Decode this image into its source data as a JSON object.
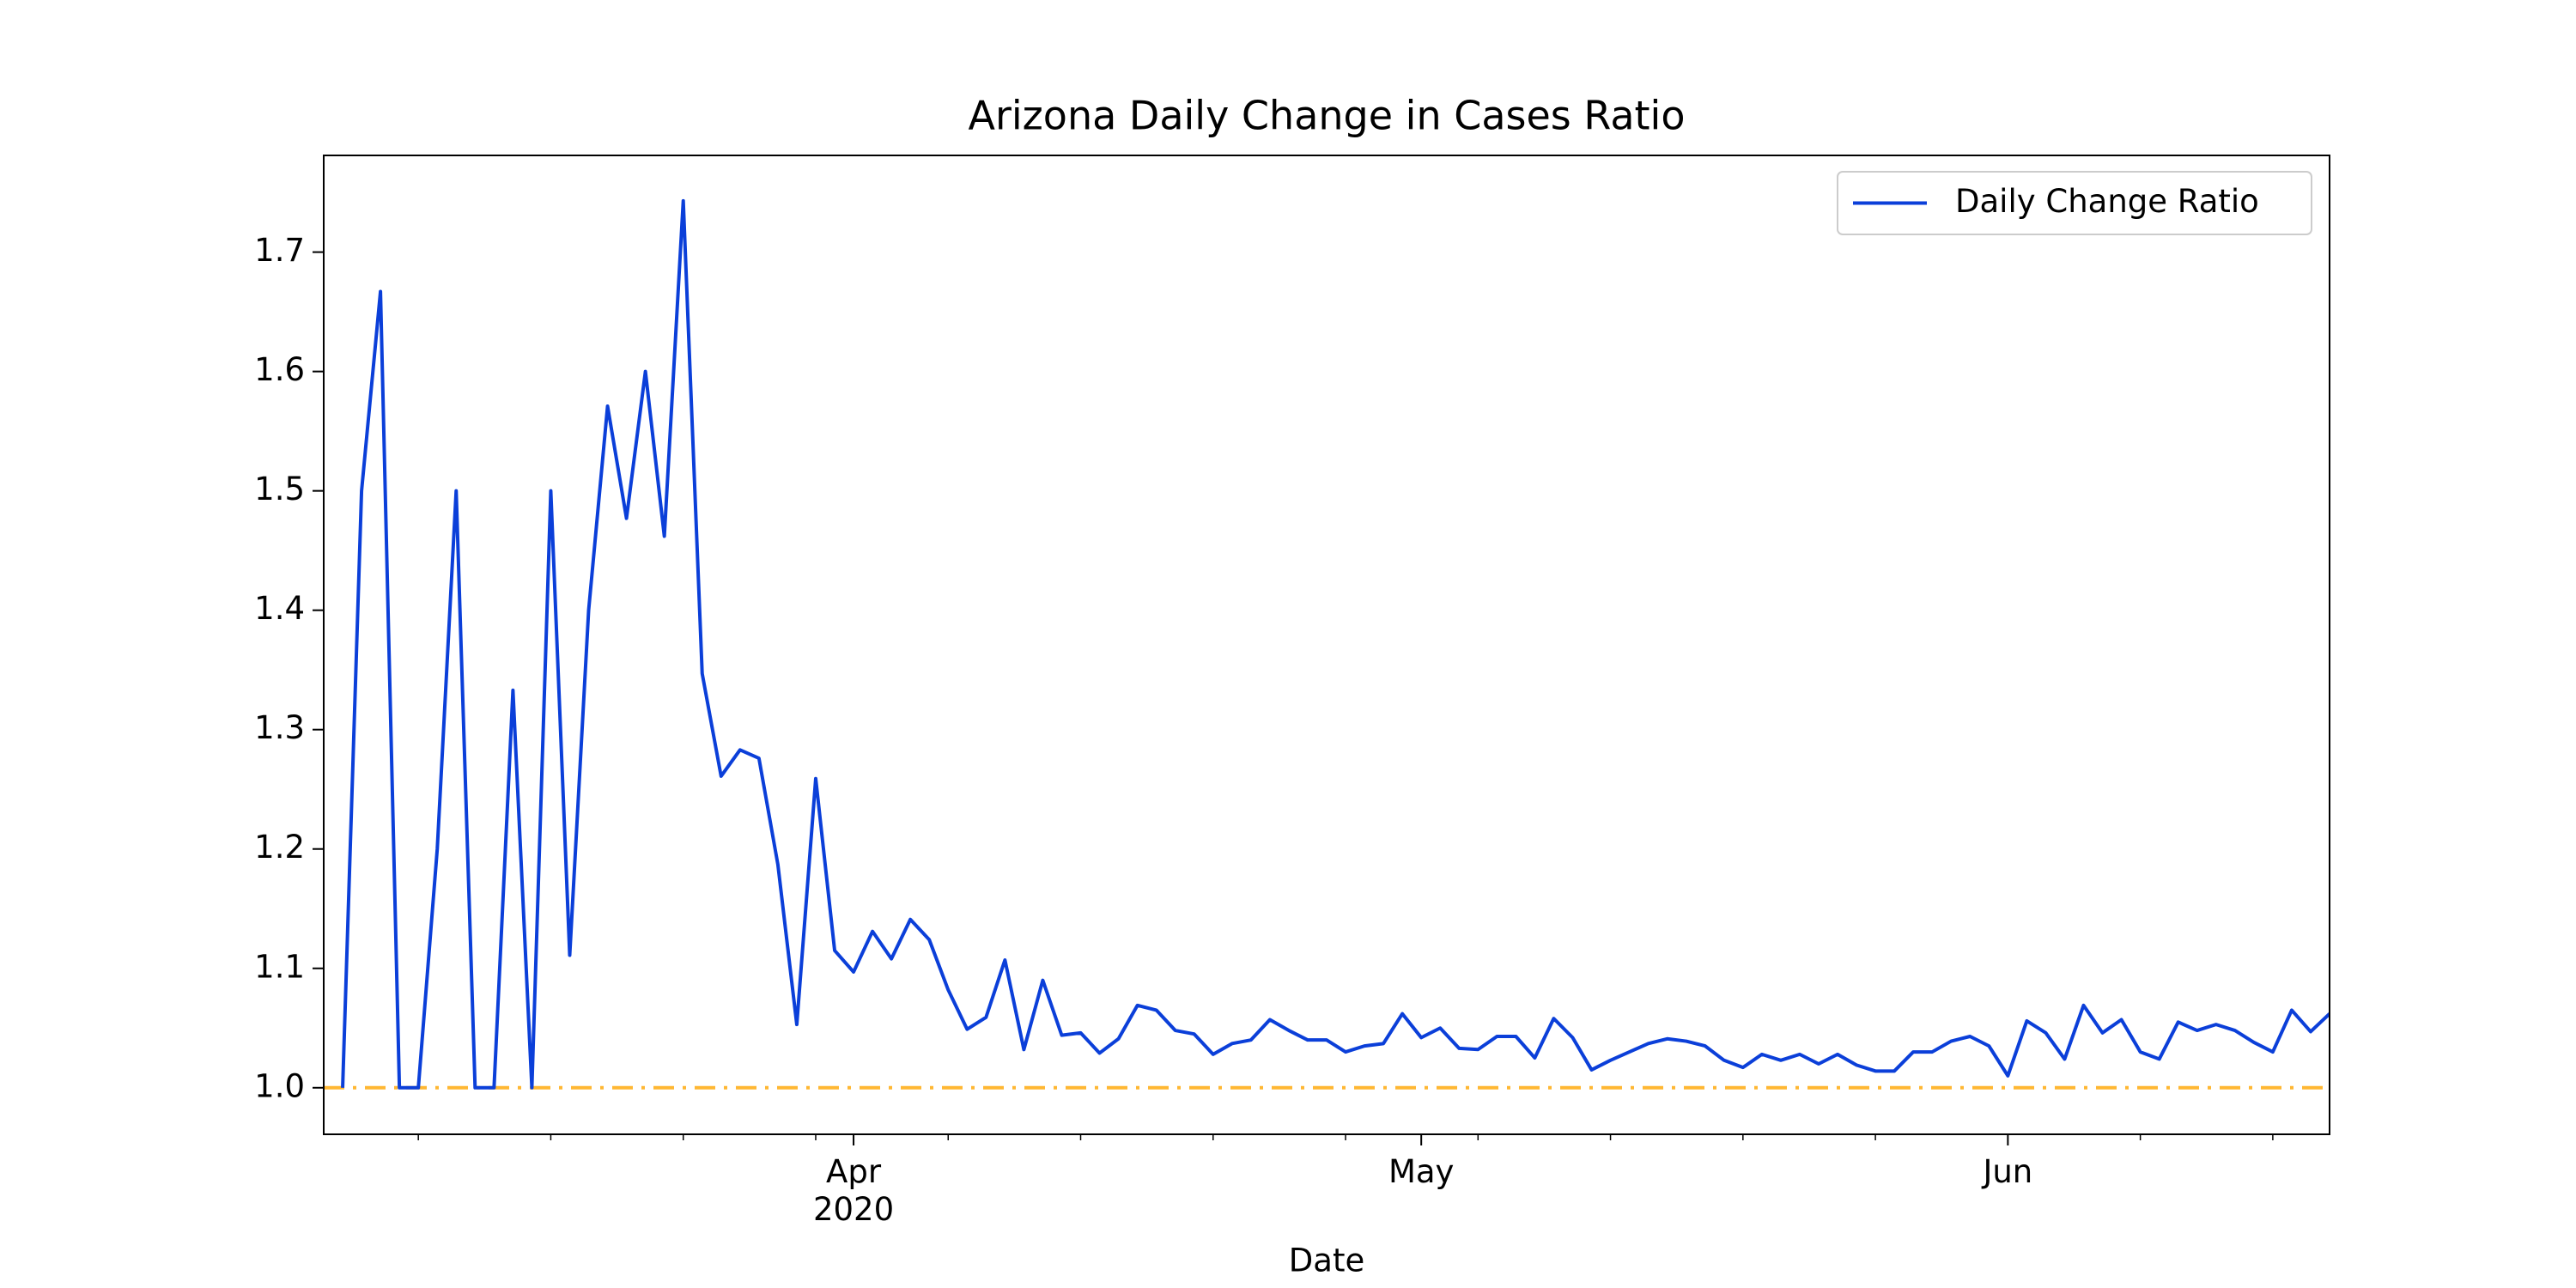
{
  "chart_data": {
    "type": "line",
    "title": "Arizona Daily Change in Cases Ratio",
    "xlabel": "Date",
    "x": [
      "2020-03-05",
      "2020-03-06",
      "2020-03-07",
      "2020-03-08",
      "2020-03-09",
      "2020-03-10",
      "2020-03-11",
      "2020-03-12",
      "2020-03-13",
      "2020-03-14",
      "2020-03-15",
      "2020-03-16",
      "2020-03-17",
      "2020-03-18",
      "2020-03-19",
      "2020-03-20",
      "2020-03-21",
      "2020-03-22",
      "2020-03-23",
      "2020-03-24",
      "2020-03-25",
      "2020-03-26",
      "2020-03-27",
      "2020-03-28",
      "2020-03-29",
      "2020-03-30",
      "2020-03-31",
      "2020-04-01",
      "2020-04-02",
      "2020-04-03",
      "2020-04-04",
      "2020-04-05",
      "2020-04-06",
      "2020-04-07",
      "2020-04-08",
      "2020-04-09",
      "2020-04-10",
      "2020-04-11",
      "2020-04-12",
      "2020-04-13",
      "2020-04-14",
      "2020-04-15",
      "2020-04-16",
      "2020-04-17",
      "2020-04-18",
      "2020-04-19",
      "2020-04-20",
      "2020-04-21",
      "2020-04-22",
      "2020-04-23",
      "2020-04-24",
      "2020-04-25",
      "2020-04-26",
      "2020-04-27",
      "2020-04-28",
      "2020-04-29",
      "2020-04-30",
      "2020-05-01",
      "2020-05-02",
      "2020-05-03",
      "2020-05-04",
      "2020-05-05",
      "2020-05-06",
      "2020-05-07",
      "2020-05-08",
      "2020-05-09",
      "2020-05-10",
      "2020-05-11",
      "2020-05-12",
      "2020-05-13",
      "2020-05-14",
      "2020-05-15",
      "2020-05-16",
      "2020-05-17",
      "2020-05-18",
      "2020-05-19",
      "2020-05-20",
      "2020-05-21",
      "2020-05-22",
      "2020-05-23",
      "2020-05-24",
      "2020-05-25",
      "2020-05-26",
      "2020-05-27",
      "2020-05-28",
      "2020-05-29",
      "2020-05-30",
      "2020-05-31",
      "2020-06-01",
      "2020-06-02",
      "2020-06-03",
      "2020-06-04",
      "2020-06-05",
      "2020-06-06",
      "2020-06-07",
      "2020-06-08",
      "2020-06-09",
      "2020-06-10",
      "2020-06-11",
      "2020-06-12",
      "2020-06-13",
      "2020-06-14",
      "2020-06-15",
      "2020-06-16",
      "2020-06-17",
      "2020-06-18"
    ],
    "series": [
      {
        "name": "Daily Change Ratio",
        "color": "#0b3fd9",
        "values": [
          1.0,
          1.5,
          1.667,
          1.0,
          1.0,
          1.2,
          1.5,
          1.0,
          1.0,
          1.333,
          1.0,
          1.5,
          1.111,
          1.4,
          1.571,
          1.477,
          1.6,
          1.462,
          1.743,
          1.347,
          1.261,
          1.283,
          1.276,
          1.187,
          1.053,
          1.259,
          1.115,
          1.097,
          1.131,
          1.108,
          1.141,
          1.124,
          1.082,
          1.049,
          1.059,
          1.107,
          1.032,
          1.09,
          1.044,
          1.046,
          1.029,
          1.041,
          1.069,
          1.065,
          1.048,
          1.045,
          1.028,
          1.037,
          1.04,
          1.057,
          1.048,
          1.04,
          1.04,
          1.03,
          1.035,
          1.037,
          1.062,
          1.042,
          1.05,
          1.033,
          1.032,
          1.043,
          1.043,
          1.025,
          1.058,
          1.042,
          1.015,
          1.023,
          1.03,
          1.037,
          1.041,
          1.039,
          1.035,
          1.023,
          1.017,
          1.028,
          1.023,
          1.028,
          1.02,
          1.028,
          1.019,
          1.014,
          1.014,
          1.03,
          1.03,
          1.039,
          1.043,
          1.035,
          1.01,
          1.056,
          1.046,
          1.024,
          1.069,
          1.046,
          1.057,
          1.03,
          1.024,
          1.055,
          1.048,
          1.053,
          1.048,
          1.038,
          1.03,
          1.065,
          1.047,
          1.062
        ]
      }
    ],
    "hline": {
      "value": 1,
      "color": "#ffb732",
      "style": "dashdot"
    },
    "xlim": [
      "2020-03-04",
      "2020-06-18"
    ],
    "xticks": [
      {
        "value": "2020-04-01",
        "label": "Apr\n2020"
      },
      {
        "value": "2020-05-01",
        "label": "May"
      },
      {
        "value": "2020-06-01",
        "label": "Jun"
      }
    ],
    "xticks_minor": [
      "2020-03-09",
      "2020-03-16",
      "2020-03-23",
      "2020-03-30",
      "2020-04-06",
      "2020-04-13",
      "2020-04-20",
      "2020-04-27",
      "2020-05-04",
      "2020-05-11",
      "2020-05-18",
      "2020-05-25",
      "2020-06-08",
      "2020-06-15"
    ],
    "ylim": [
      0.961,
      1.781
    ],
    "yticks": [
      {
        "value": 1,
        "label": "1.0"
      },
      1.1,
      1.2,
      1.3,
      1.4,
      1.5,
      1.6,
      1.7
    ],
    "grid": false,
    "legend": "upper right"
  }
}
